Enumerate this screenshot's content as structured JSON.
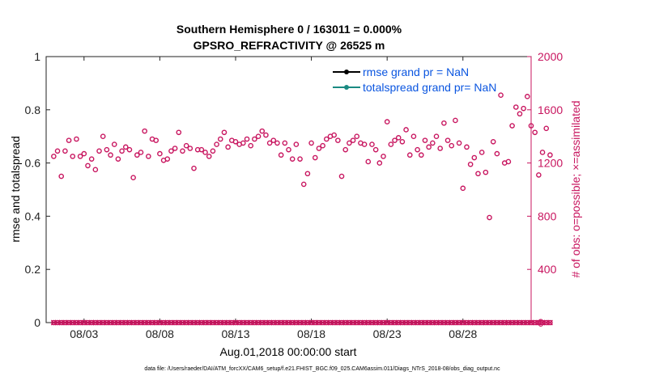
{
  "chart_data": {
    "type": "scatter",
    "title_line1": "Southern Hemisphere 0 / 163011 = 0.000%",
    "title_line2": "GPSRO_REFRACTIVITY @ 26525 m",
    "ylabel_left": "rmse and totalspread",
    "ylabel_right": "# of obs: o=possible; ×=assimilated",
    "xlabel": "Aug.01,2018 00:00:00 start",
    "footer": "data file: /Users/raeder/DAI/ATM_forcXX/CAM6_setup/f.e21.FHIST_BGC.f09_025.CAM6assim.011/Diags_NTrS_2018-08/obs_diag_output.nc",
    "ylim_left": [
      0,
      1
    ],
    "yticks_left": [
      "0",
      "0.2",
      "0.4",
      "0.6",
      "0.8",
      "1"
    ],
    "ylim_right": [
      0,
      2000
    ],
    "yticks_right": [
      "0",
      "400",
      "800",
      "1200",
      "1600",
      "2000"
    ],
    "xlim": [
      0.5,
      32.5
    ],
    "xticks": [
      {
        "day": 3,
        "label": "08/03"
      },
      {
        "day": 8,
        "label": "08/08"
      },
      {
        "day": 13,
        "label": "08/13"
      },
      {
        "day": 18,
        "label": "08/18"
      },
      {
        "day": 23,
        "label": "08/23"
      },
      {
        "day": 28,
        "label": "08/28"
      }
    ],
    "legend": [
      {
        "label": "rmse grand pr = NaN",
        "color": "#000000"
      },
      {
        "label": "totalspread grand pr= NaN",
        "color": "#1a8a82"
      }
    ],
    "series_colors": {
      "possible": "#c8155f",
      "rmse": "#000000",
      "totalspread": "#1a8a82"
    },
    "possible_obs": [
      1250,
      1290,
      1100,
      1290,
      1370,
      1250,
      1380,
      1250,
      1270,
      1180,
      1230,
      1150,
      1290,
      1400,
      1300,
      1260,
      1340,
      1230,
      1290,
      1320,
      1300,
      1090,
      1260,
      1280,
      1440,
      1250,
      1380,
      1370,
      1270,
      1220,
      1230,
      1290,
      1310,
      1430,
      1290,
      1330,
      1310,
      1160,
      1300,
      1300,
      1280,
      1250,
      1290,
      1340,
      1380,
      1430,
      1320,
      1370,
      1360,
      1340,
      1350,
      1380,
      1330,
      1380,
      1400,
      1440,
      1410,
      1350,
      1370,
      1350,
      1260,
      1350,
      1300,
      1230,
      1340,
      1230,
      1040,
      1120,
      1350,
      1240,
      1310,
      1330,
      1380,
      1400,
      1410,
      1370,
      1100,
      1300,
      1350,
      1370,
      1400,
      1350,
      1340,
      1210,
      1340,
      1300,
      1200,
      1250,
      1510,
      1340,
      1370,
      1390,
      1360,
      1450,
      1260,
      1400,
      1300,
      1260,
      1370,
      1320,
      1350,
      1400,
      1310,
      1500,
      1370,
      1330,
      1520,
      1350,
      1010,
      1320,
      1190,
      1240,
      1120,
      1280,
      1130,
      790,
      1360,
      1270,
      1710,
      1200,
      1210,
      1480,
      1620,
      1570,
      1610,
      1700,
      1480,
      1430,
      1110,
      1280,
      1460,
      1260
    ],
    "assimilated_obs": "0 at every time step"
  }
}
